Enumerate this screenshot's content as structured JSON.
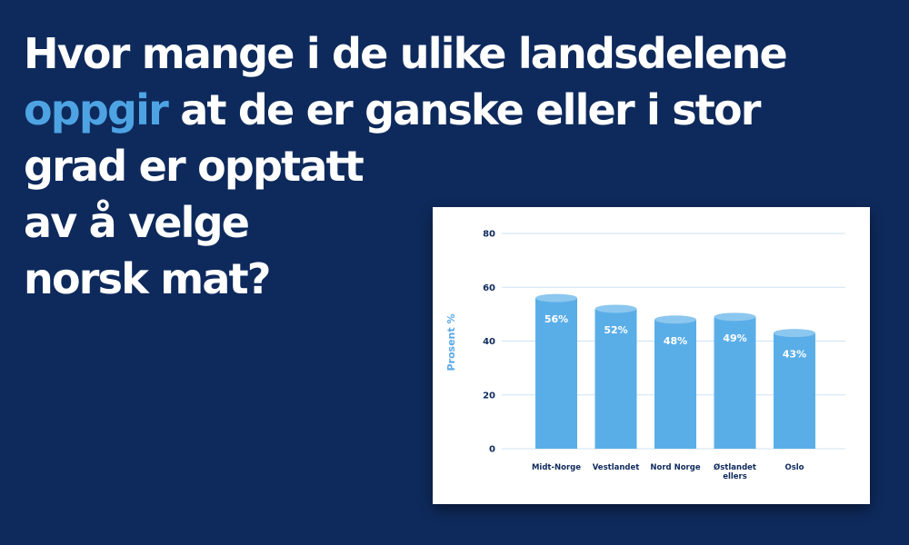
{
  "headline": {
    "line1": "Hvor mange i de ulike landsdelene",
    "line2_accent": "oppgir",
    "line2_rest": " at de er ganske eller i stor",
    "line3": "grad er opptatt",
    "line4": "av å velge",
    "line5": "norsk mat?"
  },
  "colors": {
    "background": "#0e2a5c",
    "accent": "#4ea3e3",
    "bar": "#5aaee8",
    "bar_top": "#8cc7ef",
    "axis_text": "#0e2a5c",
    "grid": "#cfe3f3"
  },
  "chart_data": {
    "type": "bar",
    "categories": [
      [
        "Midt-Norge"
      ],
      [
        "Vestlandet"
      ],
      [
        "Nord Norge"
      ],
      [
        "Østlandet",
        "ellers"
      ],
      [
        "Oslo"
      ]
    ],
    "values": [
      56,
      52,
      48,
      49,
      43
    ],
    "data_labels": [
      "56%",
      "52%",
      "48%",
      "49%",
      "43%"
    ],
    "ylabel": "Prosent %",
    "ylim": [
      0,
      80
    ],
    "yticks": [
      0,
      20,
      40,
      60,
      80
    ],
    "grid": true,
    "legend": "none"
  }
}
